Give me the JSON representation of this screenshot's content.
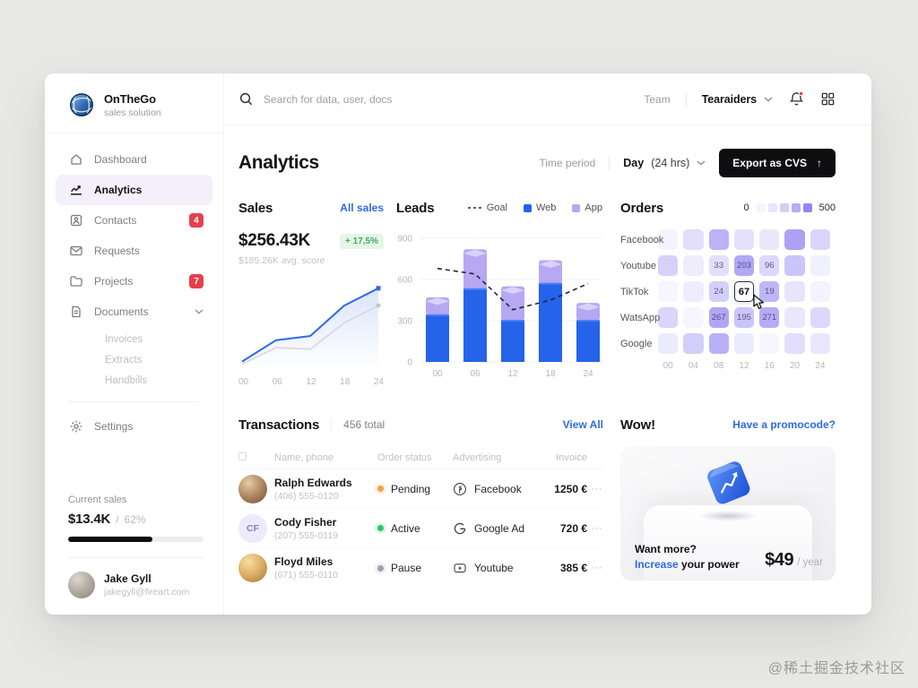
{
  "colors": {
    "accent_blue": "#2e6be5",
    "bar_blue": "#2563eb",
    "bar_purple": "#b6a8f2",
    "heat_purple": "#7a67ee",
    "badge_red": "#e5404d",
    "delta_green": "#44a861",
    "black_button": "#0e0e11"
  },
  "sidebar": {
    "logo": {
      "title": "OnTheGo",
      "subtitle": "sales solution"
    },
    "nav": [
      {
        "label": "Dashboard",
        "icon": "home-icon"
      },
      {
        "label": "Analytics",
        "icon": "analytics-icon",
        "active": true
      },
      {
        "label": "Contacts",
        "icon": "contacts-icon",
        "badge": "4"
      },
      {
        "label": "Requests",
        "icon": "requests-icon"
      },
      {
        "label": "Projects",
        "icon": "projects-icon",
        "badge": "7"
      },
      {
        "label": "Documents",
        "icon": "documents-icon",
        "chevron": true
      }
    ],
    "subnav": [
      "Invoices",
      "Extracts",
      "Handbills"
    ],
    "settings_label": "Settings",
    "current_sales": {
      "label": "Current sales",
      "value": "$13.4K",
      "separator": "/",
      "percent": "62%",
      "progress": 62
    },
    "user": {
      "name": "Jake Gyll",
      "email": "jakegyll@fireart.com"
    }
  },
  "topbar": {
    "search_placeholder": "Search for data, user, docs",
    "team_label": "Team",
    "workspace": "Tearaiders"
  },
  "header": {
    "title": "Analytics",
    "time_period_label": "Time period",
    "time_period_bold": "Day",
    "time_period_rest": "(24 hrs)",
    "export_label": "Export as CVS",
    "export_icon": "↑"
  },
  "sales": {
    "title": "Sales",
    "link": "All sales",
    "value": "$256.43K",
    "delta": "+ 17,5%",
    "avg": "$185.26K avg. score"
  },
  "leads": {
    "title": "Leads",
    "legend": {
      "goal": "Goal",
      "web": "Web",
      "app": "App"
    }
  },
  "orders": {
    "title": "Orders",
    "scale_min": "0",
    "scale_max": "500"
  },
  "transactions": {
    "title": "Transactions",
    "total": "456 total",
    "view_all": "View All",
    "headers": [
      "Name, phone",
      "Order status",
      "Advertising",
      "Invoice"
    ],
    "menu_icon": "⋯",
    "rows": [
      {
        "name": "Ralph Edwards",
        "phone": "(406) 555-0120",
        "status": "Pending",
        "status_color": "#f0a33f",
        "avatar": "photo-brown",
        "initials": "",
        "ad": "Facebook",
        "ad_icon": "facebook-icon",
        "invoice": "1250 €"
      },
      {
        "name": "Cody Fisher",
        "phone": "(207) 555-0119",
        "status": "Active",
        "status_color": "#30c46f",
        "avatar": "initials",
        "initials": "CF",
        "ad": "Google Ad",
        "ad_icon": "google-icon",
        "invoice": "720 €"
      },
      {
        "name": "Floyd Miles",
        "phone": "(671) 555-0110",
        "status": "Pause",
        "status_color": "#9aa2af",
        "avatar": "photo-blond",
        "initials": "",
        "ad": "Youtube",
        "ad_icon": "youtube-icon",
        "invoice": "385 €"
      }
    ]
  },
  "wow": {
    "title": "Wow!",
    "link": "Have a promocode?",
    "line1": "Want more?",
    "line2_accent": "Increase",
    "line2_rest": " your power",
    "price": "$49",
    "period": "/ year"
  },
  "watermark": "@稀土掘金技术社区",
  "chart_data": [
    {
      "type": "line",
      "title": "Sales trend",
      "x": [
        "00",
        "06",
        "12",
        "18",
        "24"
      ],
      "series": [
        {
          "name": "current",
          "color": "#2e6be5",
          "values": [
            8,
            34,
            39,
            76,
            97
          ]
        },
        {
          "name": "previous",
          "color": "#dcdce1",
          "values": [
            5,
            25,
            23,
            55,
            76
          ]
        }
      ],
      "ylim": [
        0,
        100
      ],
      "grid": false,
      "legend_position": "none"
    },
    {
      "type": "bar",
      "title": "Leads",
      "stacked": true,
      "categories": [
        "00",
        "06",
        "12",
        "18",
        "24"
      ],
      "series": [
        {
          "name": "Web",
          "color": "#2563eb",
          "values": [
            340,
            530,
            300,
            570,
            300
          ]
        },
        {
          "name": "App",
          "color": "#b6a8f2",
          "values": [
            130,
            290,
            250,
            170,
            130
          ]
        }
      ],
      "goal_line": {
        "name": "Goal",
        "style": "dashed",
        "values": [
          680,
          640,
          380,
          450,
          570
        ]
      },
      "ylim": [
        0,
        900
      ],
      "yticks": [
        900,
        600,
        300,
        0
      ],
      "grid": true,
      "legend_position": "top-right"
    },
    {
      "type": "heatmap",
      "title": "Orders",
      "columns": [
        "00",
        "04",
        "08",
        "12",
        "16",
        "20",
        "24"
      ],
      "rows": [
        "Facebook",
        "Youtube",
        "TikTok",
        "WatsApp",
        "Google"
      ],
      "scale": [
        0,
        500
      ],
      "legend_alphas": [
        0.08,
        0.18,
        0.32,
        0.55,
        0.8
      ],
      "cells": [
        [
          {
            "s": 0.08
          },
          {
            "s": 0.22
          },
          {
            "s": 0.5
          },
          {
            "s": 0.2
          },
          {
            "s": 0.16
          },
          {
            "s": 0.62
          },
          {
            "s": 0.28
          }
        ],
        [
          {
            "s": 0.3
          },
          {
            "s": 0.12
          },
          {
            "s": 0.22,
            "v": "33"
          },
          {
            "s": 0.58,
            "v": "203"
          },
          {
            "s": 0.26,
            "v": "96"
          },
          {
            "s": 0.38
          },
          {
            "s": 0.1
          }
        ],
        [
          {
            "s": 0.06
          },
          {
            "s": 0.12
          },
          {
            "s": 0.32,
            "v": "24"
          },
          {
            "h": true,
            "v": "67"
          },
          {
            "s": 0.48,
            "v": "19"
          },
          {
            "s": 0.18
          },
          {
            "s": 0.08
          }
        ],
        [
          {
            "s": 0.28
          },
          {
            "s": 0.06
          },
          {
            "s": 0.58,
            "v": "267"
          },
          {
            "s": 0.38,
            "v": "195"
          },
          {
            "s": 0.55,
            "v": "271"
          },
          {
            "s": 0.16
          },
          {
            "s": 0.26
          }
        ],
        [
          {
            "s": 0.14
          },
          {
            "s": 0.32
          },
          {
            "s": 0.52
          },
          {
            "s": 0.14
          },
          {
            "s": 0.06
          },
          {
            "s": 0.22
          },
          {
            "s": 0.16
          }
        ]
      ]
    }
  ]
}
